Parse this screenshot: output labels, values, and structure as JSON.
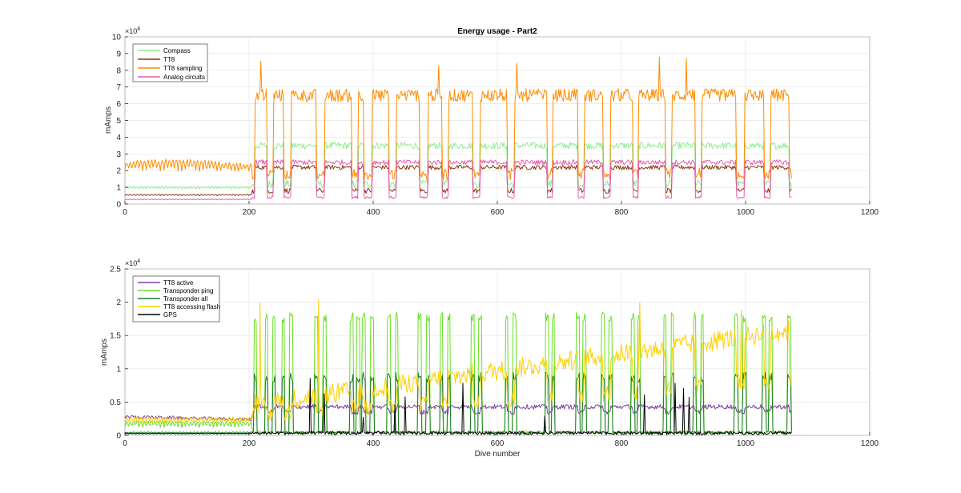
{
  "chart_data": [
    {
      "type": "line",
      "title": "Energy usage - Part2",
      "xlabel": "",
      "ylabel": "mAmps",
      "xlim": [
        0,
        1200
      ],
      "ylim": [
        0,
        100000
      ],
      "y_exponent": "×10",
      "y_exponent_power": "4",
      "xticks": [
        "0",
        "200",
        "400",
        "600",
        "800",
        "1000",
        "1200"
      ],
      "yticks": [
        "0",
        "1",
        "2",
        "3",
        "4",
        "5",
        "6",
        "7",
        "8",
        "9",
        "10"
      ],
      "grid": true,
      "legend_position": "top-left",
      "dive_blocks": [
        {
          "start": 210,
          "end": 228
        },
        {
          "start": 240,
          "end": 255
        },
        {
          "start": 268,
          "end": 308
        },
        {
          "start": 322,
          "end": 365
        },
        {
          "start": 376,
          "end": 385
        },
        {
          "start": 398,
          "end": 425
        },
        {
          "start": 438,
          "end": 475
        },
        {
          "start": 488,
          "end": 510
        },
        {
          "start": 522,
          "end": 560
        },
        {
          "start": 572,
          "end": 615
        },
        {
          "start": 628,
          "end": 680
        },
        {
          "start": 690,
          "end": 730
        },
        {
          "start": 740,
          "end": 770
        },
        {
          "start": 782,
          "end": 818
        },
        {
          "start": 828,
          "end": 870
        },
        {
          "start": 882,
          "end": 918
        },
        {
          "start": 930,
          "end": 985
        },
        {
          "start": 998,
          "end": 1030
        },
        {
          "start": 1040,
          "end": 1070
        }
      ],
      "series": [
        {
          "name": "Compass",
          "color": "#90ee90",
          "pre_level": 9000,
          "pre_amp": 1500,
          "high": 35000,
          "low": 12000,
          "spike": 0,
          "pattern": "dive"
        },
        {
          "name": "TT8",
          "color": "#8b3a0f",
          "pre_level": 5000,
          "pre_amp": 800,
          "high": 22000,
          "low": 8000,
          "spike": 0,
          "pattern": "dive"
        },
        {
          "name": "TT8 sampling",
          "color": "#ff8c00",
          "pre_level": 20000,
          "pre_amp": 6000,
          "high": 65000,
          "low": 18000,
          "spike": 88000,
          "pattern": "dive"
        },
        {
          "name": "Analog circuits",
          "color": "#e75fb0",
          "pre_level": 2500,
          "pre_amp": 500,
          "high": 25000,
          "low": 4000,
          "spike": 0,
          "pattern": "dive"
        }
      ]
    },
    {
      "type": "line",
      "title": "",
      "xlabel": "Dive number",
      "ylabel": "mAmps",
      "xlim": [
        0,
        1200
      ],
      "ylim": [
        0,
        25000
      ],
      "y_exponent": "×10",
      "y_exponent_power": "4",
      "xticks": [
        "0",
        "200",
        "400",
        "600",
        "800",
        "1000",
        "1200"
      ],
      "yticks": [
        "0",
        "0.5",
        "1",
        "1.5",
        "2",
        "2.5"
      ],
      "grid": true,
      "legend_position": "top-left",
      "series": [
        {
          "name": "TT8 active",
          "color": "#7b3fa0",
          "pre_level": 2800,
          "pre_amp": 300,
          "high": 4300,
          "low": 3500,
          "spike": 0,
          "pattern": "steady"
        },
        {
          "name": "Transponder ping",
          "color": "#66e022",
          "pre_level": 1200,
          "pre_amp": 900,
          "high": 17000,
          "low": 300,
          "spike": 19000,
          "pattern": "ping"
        },
        {
          "name": "Transponder all",
          "color": "#1f7a2a",
          "pre_level": 300,
          "pre_amp": 200,
          "high": 8000,
          "low": 200,
          "spike": 0,
          "pattern": "ping"
        },
        {
          "name": "TT8 accessing flash",
          "color": "#ffd000",
          "pre_level": 1800,
          "pre_amp": 900,
          "high": 19000,
          "low": 4000,
          "spike": 22000,
          "pattern": "flash"
        },
        {
          "name": "GPS",
          "color": "#000000",
          "pre_level": 200,
          "pre_amp": 100,
          "high": 500,
          "low": 100,
          "spike": 9000,
          "pattern": "gps"
        }
      ]
    }
  ]
}
